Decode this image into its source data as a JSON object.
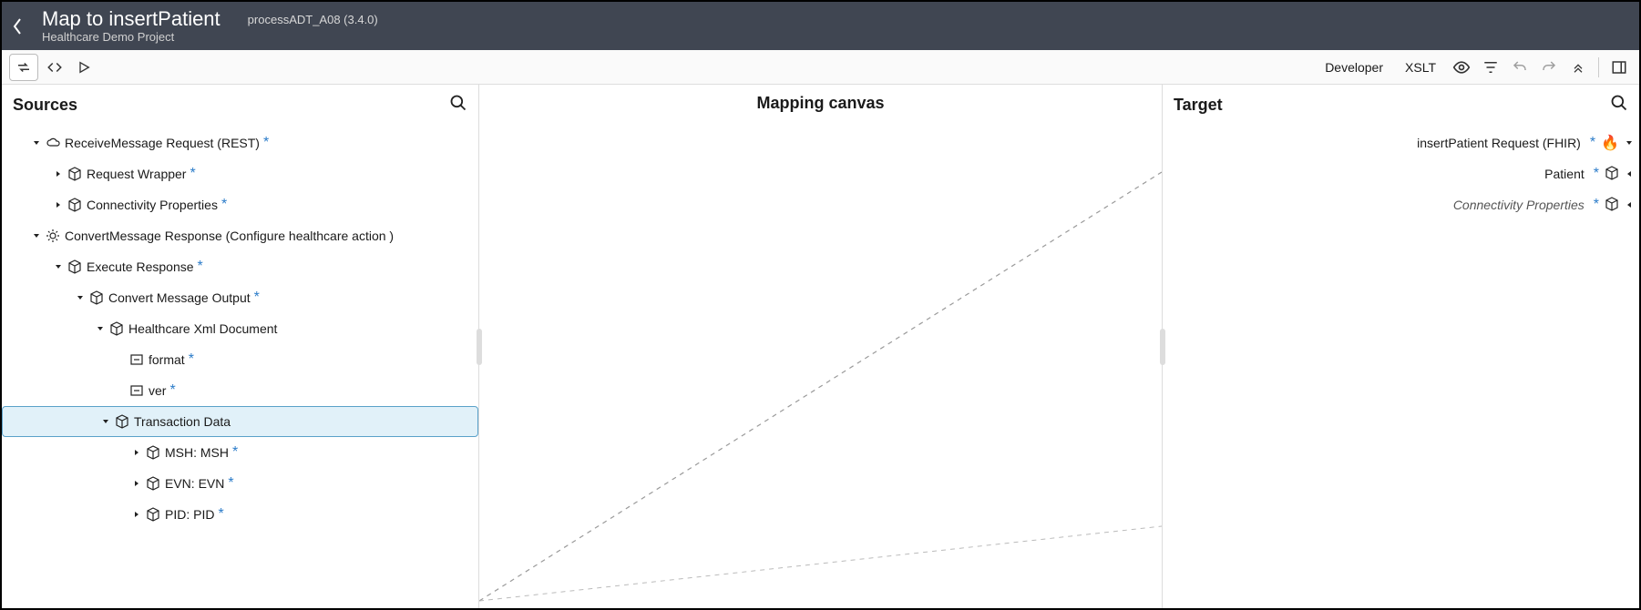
{
  "colors": {
    "header_bg": "#404652",
    "accent": "#2c7cc9",
    "selected_bg": "#e1f1f9",
    "selected_border": "#5aa1c9",
    "toolbar_bg": "#fafafa",
    "toolbar_border": "#dddddd",
    "flame": "#e26a1b"
  },
  "header": {
    "title": "Map to insertPatient",
    "subtitle": "Healthcare Demo Project",
    "process": "processADT_A08 (3.4.0)"
  },
  "toolbar": {
    "developer": "Developer",
    "xslt": "XSLT"
  },
  "panels": {
    "sources": "Sources",
    "canvas": "Mapping canvas",
    "target": "Target"
  },
  "sources_tree": [
    {
      "id": "rmr",
      "indent": 30,
      "kind": "cloud",
      "toggle": "down",
      "label": "ReceiveMessage Request (REST)",
      "star": true,
      "selected": false
    },
    {
      "id": "rw",
      "indent": 54,
      "kind": "cube",
      "toggle": "right",
      "label": "Request Wrapper",
      "star": true
    },
    {
      "id": "cp",
      "indent": 54,
      "kind": "cube",
      "toggle": "right",
      "label": "Connectivity Properties",
      "star": true
    },
    {
      "id": "cmr",
      "indent": 30,
      "kind": "gear",
      "toggle": "down",
      "label": "ConvertMessage Response (Configure healthcare action )"
    },
    {
      "id": "er",
      "indent": 54,
      "kind": "cube",
      "toggle": "down",
      "label": "Execute Response",
      "star": true
    },
    {
      "id": "cmo",
      "indent": 78,
      "kind": "cube",
      "toggle": "down",
      "label": "Convert Message Output",
      "star": true
    },
    {
      "id": "hxd",
      "indent": 100,
      "kind": "cube",
      "toggle": "down",
      "label": "Healthcare Xml Document"
    },
    {
      "id": "fmt",
      "indent": 122,
      "kind": "leaf",
      "toggle": "none",
      "label": "format",
      "star": true
    },
    {
      "id": "ver",
      "indent": 122,
      "kind": "leaf",
      "toggle": "none",
      "label": "ver",
      "star": true
    },
    {
      "id": "td",
      "indent": 106,
      "kind": "cube",
      "toggle": "down",
      "label": "Transaction Data",
      "selected": true
    },
    {
      "id": "msh",
      "indent": 140,
      "kind": "cube",
      "toggle": "right",
      "label": "MSH: MSH",
      "star": true
    },
    {
      "id": "evn",
      "indent": 140,
      "kind": "cube",
      "toggle": "right",
      "label": "EVN: EVN",
      "star": true
    },
    {
      "id": "pid",
      "indent": 140,
      "kind": "cube",
      "toggle": "right",
      "label": "PID: PID",
      "star": true
    }
  ],
  "target_tree": [
    {
      "id": "ipr",
      "label": "insertPatient Request (FHIR)",
      "star": true,
      "kind": "flame",
      "chev": "down"
    },
    {
      "id": "pat",
      "label": "Patient",
      "star": true,
      "kind": "cube",
      "chev": "left"
    },
    {
      "id": "tcp",
      "label": "Connectivity Properties",
      "star": true,
      "kind": "cube",
      "chev": "left",
      "italic": true
    }
  ],
  "icons": {
    "swap": "swap-icon",
    "code": "code-icon",
    "play": "play-icon",
    "eye": "visibility-icon",
    "filter": "filter-icon",
    "undo": "undo-icon",
    "redo": "redo-icon",
    "chevrons": "collapse-icon",
    "panel": "panel-toggle-icon",
    "search": "search-icon",
    "back": "back-icon"
  }
}
